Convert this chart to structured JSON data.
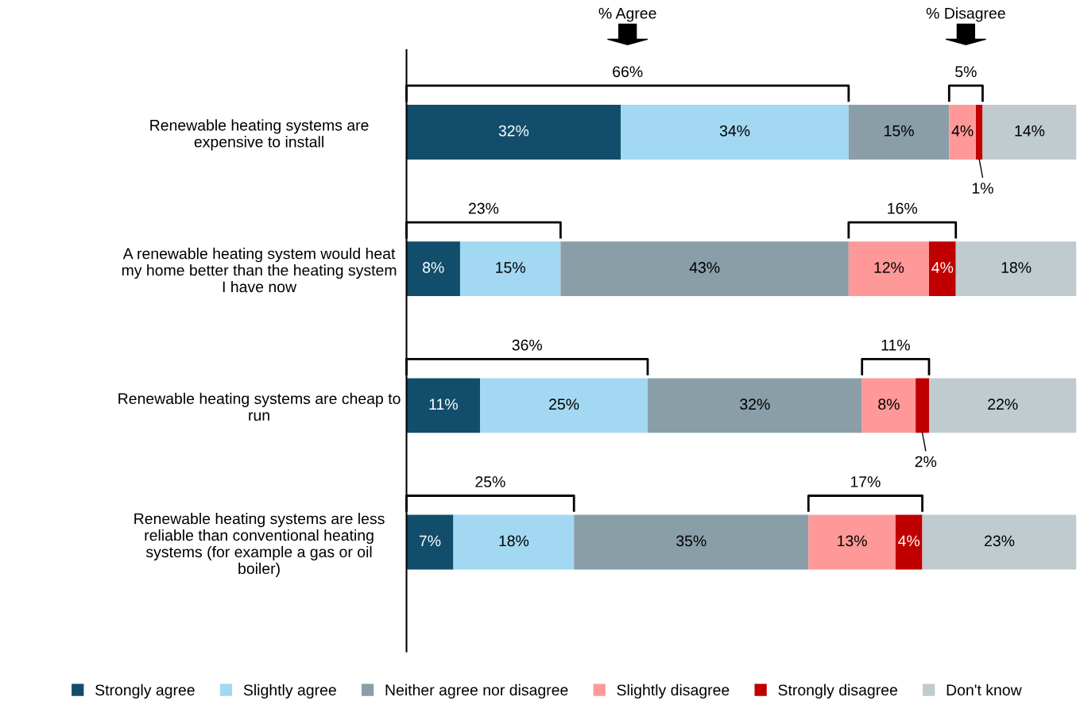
{
  "chart_data": {
    "type": "bar",
    "orientation": "horizontal",
    "stacked": true,
    "legend": "bottom",
    "grid": false,
    "categories": [
      "Renewable heating systems are expensive to install",
      "A renewable heating system would heat my home better than the heating system I have now",
      "Renewable heating systems are cheap to run",
      "Renewable heating systems are less reliable than conventional heating systems (for example a gas or oil boiler)"
    ],
    "series": [
      {
        "name": "Strongly agree",
        "color": "#124e6b",
        "values": [
          32,
          8,
          11,
          7
        ],
        "value_labels": [
          "32%",
          "8%",
          "11%",
          "7%"
        ]
      },
      {
        "name": "Slightly agree",
        "color": "#a3d8f2",
        "values": [
          34,
          15,
          25,
          18
        ],
        "value_labels": [
          "34%",
          "15%",
          "25%",
          "18%"
        ]
      },
      {
        "name": "Neither agree nor disagree",
        "color": "#8a9ea8",
        "values": [
          15,
          43,
          32,
          35
        ],
        "value_labels": [
          "15%",
          "43%",
          "32%",
          "35%"
        ]
      },
      {
        "name": "Slightly disagree",
        "color": "#ff9999",
        "values": [
          4,
          12,
          8,
          13
        ],
        "value_labels": [
          "4%",
          "12%",
          "8%",
          "13%"
        ]
      },
      {
        "name": "Strongly disagree",
        "color": "#c00000",
        "values": [
          1,
          4,
          2,
          4
        ],
        "value_labels": [
          "1%",
          "4%",
          "2%",
          "4%"
        ]
      },
      {
        "name": "Don't know",
        "color": "#c0cbd0",
        "values": [
          14,
          18,
          22,
          23
        ],
        "value_labels": [
          "14%",
          "18%",
          "22%",
          "23%"
        ]
      }
    ],
    "annotations": [
      "% Agree",
      "% Disagree",
      "66%",
      "5%",
      "23%",
      "16%",
      "36%",
      "11%",
      "25%",
      "17%"
    ]
  }
}
